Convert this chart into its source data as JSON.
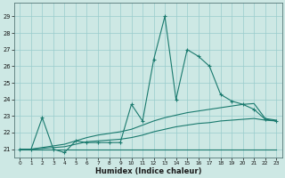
{
  "xlabel": "Humidex (Indice chaleur)",
  "bg_color": "#cde8e4",
  "grid_color": "#99cccc",
  "line_color": "#1a7a6e",
  "xlim": [
    -0.5,
    23.5
  ],
  "ylim": [
    20.5,
    29.8
  ],
  "yticks": [
    21,
    22,
    23,
    24,
    25,
    26,
    27,
    28,
    29
  ],
  "xticks": [
    0,
    1,
    2,
    3,
    4,
    5,
    6,
    7,
    8,
    9,
    10,
    11,
    12,
    13,
    14,
    15,
    16,
    17,
    18,
    19,
    20,
    21,
    22,
    23
  ],
  "curve1_x": [
    0,
    1,
    2,
    3,
    4,
    5,
    6,
    7,
    8,
    9,
    10,
    11,
    12,
    13,
    14,
    15,
    16,
    17,
    18,
    19,
    20,
    21,
    22,
    23
  ],
  "curve1_y": [
    21.0,
    21.0,
    22.9,
    21.0,
    20.8,
    21.5,
    21.4,
    21.4,
    21.4,
    21.4,
    23.7,
    22.7,
    26.4,
    29.0,
    24.0,
    27.0,
    26.6,
    26.0,
    24.3,
    23.9,
    23.7,
    23.4,
    22.8,
    22.7
  ],
  "curve2_x": [
    0,
    1,
    2,
    3,
    4,
    5,
    6,
    7,
    8,
    9,
    10,
    11,
    12,
    13,
    14,
    15,
    16,
    17,
    18,
    19,
    20,
    21,
    22,
    23
  ],
  "curve2_y": [
    21.0,
    21.0,
    21.0,
    21.0,
    21.0,
    21.0,
    21.0,
    21.0,
    21.0,
    21.0,
    21.0,
    21.0,
    21.0,
    21.0,
    21.0,
    21.0,
    21.0,
    21.0,
    21.0,
    21.0,
    21.0,
    21.0,
    21.0,
    21.0
  ],
  "curve3_x": [
    0,
    1,
    2,
    3,
    4,
    5,
    6,
    7,
    8,
    9,
    10,
    11,
    12,
    13,
    14,
    15,
    16,
    17,
    18,
    19,
    20,
    21,
    22,
    23
  ],
  "curve3_y": [
    21.0,
    21.0,
    21.05,
    21.1,
    21.15,
    21.3,
    21.45,
    21.5,
    21.55,
    21.6,
    21.7,
    21.85,
    22.05,
    22.2,
    22.35,
    22.45,
    22.55,
    22.6,
    22.7,
    22.75,
    22.8,
    22.85,
    22.75,
    22.7
  ],
  "curve4_x": [
    0,
    1,
    2,
    3,
    4,
    5,
    6,
    7,
    8,
    9,
    10,
    11,
    12,
    13,
    14,
    15,
    16,
    17,
    18,
    19,
    20,
    21,
    22,
    23
  ],
  "curve4_y": [
    21.0,
    21.0,
    21.1,
    21.2,
    21.3,
    21.5,
    21.7,
    21.85,
    21.95,
    22.05,
    22.2,
    22.45,
    22.7,
    22.9,
    23.05,
    23.2,
    23.3,
    23.4,
    23.5,
    23.6,
    23.7,
    23.75,
    22.85,
    22.75
  ]
}
